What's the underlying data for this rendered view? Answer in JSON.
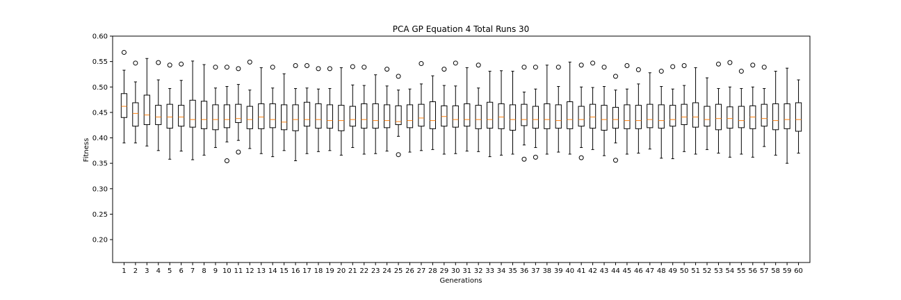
{
  "chart_data": {
    "type": "boxplot",
    "title": "PCA GP Equation 4 Total Runs 30",
    "xlabel": "Generations",
    "ylabel": "Fitness",
    "ylim": [
      0.155,
      0.6
    ],
    "yticks": [
      "0.20",
      "0.25",
      "0.30",
      "0.35",
      "0.40",
      "0.45",
      "0.50",
      "0.55",
      "0.60"
    ],
    "grid": false,
    "colors": {
      "box": "#000000",
      "median": "#ff7f0e",
      "flier": "#000000"
    },
    "categories": [
      "1",
      "2",
      "3",
      "4",
      "5",
      "6",
      "7",
      "8",
      "9",
      "10",
      "11",
      "12",
      "13",
      "14",
      "15",
      "16",
      "17",
      "18",
      "19",
      "20",
      "21",
      "22",
      "23",
      "24",
      "25",
      "26",
      "27",
      "28",
      "29",
      "30",
      "31",
      "32",
      "33",
      "34",
      "35",
      "36",
      "37",
      "38",
      "39",
      "40",
      "41",
      "42",
      "43",
      "44",
      "45",
      "46",
      "47",
      "48",
      "49",
      "50",
      "51",
      "52",
      "53",
      "54",
      "55",
      "56",
      "57",
      "58",
      "59",
      "60"
    ],
    "boxes": [
      {
        "wl": 0.39,
        "q1": 0.44,
        "med": 0.462,
        "q3": 0.487,
        "wh": 0.533,
        "fliers": [
          0.568
        ]
      },
      {
        "wl": 0.39,
        "q1": 0.423,
        "med": 0.448,
        "q3": 0.469,
        "wh": 0.51,
        "fliers": [
          0.547
        ]
      },
      {
        "wl": 0.384,
        "q1": 0.426,
        "med": 0.445,
        "q3": 0.484,
        "wh": 0.556,
        "fliers": []
      },
      {
        "wl": 0.375,
        "q1": 0.426,
        "med": 0.441,
        "q3": 0.464,
        "wh": 0.514,
        "fliers": [
          0.548
        ]
      },
      {
        "wl": 0.358,
        "q1": 0.419,
        "med": 0.441,
        "q3": 0.466,
        "wh": 0.497,
        "fliers": [
          0.543
        ]
      },
      {
        "wl": 0.374,
        "q1": 0.423,
        "med": 0.441,
        "q3": 0.464,
        "wh": 0.513,
        "fliers": [
          0.545
        ]
      },
      {
        "wl": 0.357,
        "q1": 0.421,
        "med": 0.436,
        "q3": 0.474,
        "wh": 0.551,
        "fliers": []
      },
      {
        "wl": 0.366,
        "q1": 0.418,
        "med": 0.436,
        "q3": 0.472,
        "wh": 0.544,
        "fliers": []
      },
      {
        "wl": 0.381,
        "q1": 0.416,
        "med": 0.436,
        "q3": 0.465,
        "wh": 0.498,
        "fliers": [
          0.539
        ]
      },
      {
        "wl": 0.392,
        "q1": 0.42,
        "med": 0.436,
        "q3": 0.465,
        "wh": 0.501,
        "fliers": [
          0.539,
          0.355
        ]
      },
      {
        "wl": 0.395,
        "q1": 0.43,
        "med": 0.438,
        "q3": 0.466,
        "wh": 0.505,
        "fliers": [
          0.536,
          0.372
        ]
      },
      {
        "wl": 0.379,
        "q1": 0.418,
        "med": 0.436,
        "q3": 0.462,
        "wh": 0.494,
        "fliers": [
          0.549
        ]
      },
      {
        "wl": 0.369,
        "q1": 0.418,
        "med": 0.441,
        "q3": 0.467,
        "wh": 0.538,
        "fliers": []
      },
      {
        "wl": 0.363,
        "q1": 0.42,
        "med": 0.436,
        "q3": 0.467,
        "wh": 0.498,
        "fliers": [
          0.539
        ]
      },
      {
        "wl": 0.375,
        "q1": 0.416,
        "med": 0.431,
        "q3": 0.465,
        "wh": 0.526,
        "fliers": []
      },
      {
        "wl": 0.355,
        "q1": 0.414,
        "med": 0.436,
        "q3": 0.465,
        "wh": 0.497,
        "fliers": [
          0.542
        ]
      },
      {
        "wl": 0.369,
        "q1": 0.423,
        "med": 0.436,
        "q3": 0.47,
        "wh": 0.498,
        "fliers": [
          0.542
        ]
      },
      {
        "wl": 0.373,
        "q1": 0.419,
        "med": 0.436,
        "q3": 0.467,
        "wh": 0.496,
        "fliers": [
          0.536
        ]
      },
      {
        "wl": 0.375,
        "q1": 0.419,
        "med": 0.434,
        "q3": 0.465,
        "wh": 0.497,
        "fliers": [
          0.536
        ]
      },
      {
        "wl": 0.366,
        "q1": 0.414,
        "med": 0.434,
        "q3": 0.464,
        "wh": 0.538,
        "fliers": []
      },
      {
        "wl": 0.381,
        "q1": 0.423,
        "med": 0.436,
        "q3": 0.462,
        "wh": 0.504,
        "fliers": [
          0.54
        ]
      },
      {
        "wl": 0.368,
        "q1": 0.419,
        "med": 0.436,
        "q3": 0.467,
        "wh": 0.503,
        "fliers": [
          0.539
        ]
      },
      {
        "wl": 0.369,
        "q1": 0.419,
        "med": 0.434,
        "q3": 0.467,
        "wh": 0.524,
        "fliers": []
      },
      {
        "wl": 0.374,
        "q1": 0.42,
        "med": 0.434,
        "q3": 0.465,
        "wh": 0.502,
        "fliers": [
          0.535
        ]
      },
      {
        "wl": 0.403,
        "q1": 0.426,
        "med": 0.432,
        "q3": 0.463,
        "wh": 0.494,
        "fliers": [
          0.521,
          0.367
        ]
      },
      {
        "wl": 0.372,
        "q1": 0.42,
        "med": 0.434,
        "q3": 0.465,
        "wh": 0.496,
        "fliers": []
      },
      {
        "wl": 0.375,
        "q1": 0.423,
        "med": 0.439,
        "q3": 0.466,
        "wh": 0.506,
        "fliers": [
          0.546
        ]
      },
      {
        "wl": 0.377,
        "q1": 0.418,
        "med": 0.434,
        "q3": 0.471,
        "wh": 0.522,
        "fliers": []
      },
      {
        "wl": 0.368,
        "q1": 0.423,
        "med": 0.442,
        "q3": 0.463,
        "wh": 0.503,
        "fliers": [
          0.535
        ]
      },
      {
        "wl": 0.369,
        "q1": 0.421,
        "med": 0.436,
        "q3": 0.463,
        "wh": 0.502,
        "fliers": [
          0.547
        ]
      },
      {
        "wl": 0.374,
        "q1": 0.423,
        "med": 0.436,
        "q3": 0.467,
        "wh": 0.538,
        "fliers": []
      },
      {
        "wl": 0.373,
        "q1": 0.418,
        "med": 0.436,
        "q3": 0.464,
        "wh": 0.498,
        "fliers": [
          0.543
        ]
      },
      {
        "wl": 0.363,
        "q1": 0.419,
        "med": 0.436,
        "q3": 0.47,
        "wh": 0.531,
        "fliers": []
      },
      {
        "wl": 0.366,
        "q1": 0.418,
        "med": 0.441,
        "q3": 0.467,
        "wh": 0.532,
        "fliers": []
      },
      {
        "wl": 0.368,
        "q1": 0.415,
        "med": 0.436,
        "q3": 0.465,
        "wh": 0.531,
        "fliers": []
      },
      {
        "wl": 0.386,
        "q1": 0.424,
        "med": 0.436,
        "q3": 0.466,
        "wh": 0.49,
        "fliers": [
          0.539,
          0.358
        ]
      },
      {
        "wl": 0.381,
        "q1": 0.419,
        "med": 0.436,
        "q3": 0.462,
        "wh": 0.496,
        "fliers": [
          0.539,
          0.362
        ]
      },
      {
        "wl": 0.368,
        "q1": 0.418,
        "med": 0.436,
        "q3": 0.467,
        "wh": 0.543,
        "fliers": []
      },
      {
        "wl": 0.372,
        "q1": 0.419,
        "med": 0.434,
        "q3": 0.465,
        "wh": 0.501,
        "fliers": [
          0.539
        ]
      },
      {
        "wl": 0.368,
        "q1": 0.418,
        "med": 0.436,
        "q3": 0.471,
        "wh": 0.549,
        "fliers": []
      },
      {
        "wl": 0.381,
        "q1": 0.423,
        "med": 0.436,
        "q3": 0.462,
        "wh": 0.5,
        "fliers": [
          0.543,
          0.361
        ]
      },
      {
        "wl": 0.377,
        "q1": 0.419,
        "med": 0.441,
        "q3": 0.466,
        "wh": 0.499,
        "fliers": [
          0.547
        ]
      },
      {
        "wl": 0.365,
        "q1": 0.415,
        "med": 0.436,
        "q3": 0.464,
        "wh": 0.501,
        "fliers": [
          0.539
        ]
      },
      {
        "wl": 0.39,
        "q1": 0.419,
        "med": 0.436,
        "q3": 0.46,
        "wh": 0.494,
        "fliers": [
          0.521,
          0.356
        ]
      },
      {
        "wl": 0.368,
        "q1": 0.418,
        "med": 0.434,
        "q3": 0.465,
        "wh": 0.496,
        "fliers": [
          0.542
        ]
      },
      {
        "wl": 0.37,
        "q1": 0.418,
        "med": 0.434,
        "q3": 0.464,
        "wh": 0.506,
        "fliers": [
          0.534
        ]
      },
      {
        "wl": 0.378,
        "q1": 0.42,
        "med": 0.436,
        "q3": 0.466,
        "wh": 0.528,
        "fliers": []
      },
      {
        "wl": 0.36,
        "q1": 0.419,
        "med": 0.434,
        "q3": 0.465,
        "wh": 0.501,
        "fliers": [
          0.531
        ]
      },
      {
        "wl": 0.359,
        "q1": 0.423,
        "med": 0.436,
        "q3": 0.464,
        "wh": 0.496,
        "fliers": [
          0.54
        ]
      },
      {
        "wl": 0.373,
        "q1": 0.426,
        "med": 0.441,
        "q3": 0.466,
        "wh": 0.503,
        "fliers": [
          0.542
        ]
      },
      {
        "wl": 0.368,
        "q1": 0.421,
        "med": 0.441,
        "q3": 0.469,
        "wh": 0.538,
        "fliers": []
      },
      {
        "wl": 0.377,
        "q1": 0.423,
        "med": 0.436,
        "q3": 0.462,
        "wh": 0.518,
        "fliers": []
      },
      {
        "wl": 0.37,
        "q1": 0.416,
        "med": 0.438,
        "q3": 0.466,
        "wh": 0.497,
        "fliers": [
          0.545
        ]
      },
      {
        "wl": 0.362,
        "q1": 0.419,
        "med": 0.438,
        "q3": 0.461,
        "wh": 0.5,
        "fliers": [
          0.548
        ]
      },
      {
        "wl": 0.368,
        "q1": 0.42,
        "med": 0.434,
        "q3": 0.462,
        "wh": 0.497,
        "fliers": [
          0.531
        ]
      },
      {
        "wl": 0.362,
        "q1": 0.418,
        "med": 0.441,
        "q3": 0.463,
        "wh": 0.5,
        "fliers": [
          0.543
        ]
      },
      {
        "wl": 0.383,
        "q1": 0.423,
        "med": 0.438,
        "q3": 0.466,
        "wh": 0.497,
        "fliers": [
          0.539
        ]
      },
      {
        "wl": 0.366,
        "q1": 0.416,
        "med": 0.434,
        "q3": 0.467,
        "wh": 0.531,
        "fliers": []
      },
      {
        "wl": 0.35,
        "q1": 0.418,
        "med": 0.436,
        "q3": 0.467,
        "wh": 0.537,
        "fliers": []
      },
      {
        "wl": 0.37,
        "q1": 0.413,
        "med": 0.436,
        "q3": 0.469,
        "wh": 0.514,
        "fliers": []
      }
    ]
  }
}
